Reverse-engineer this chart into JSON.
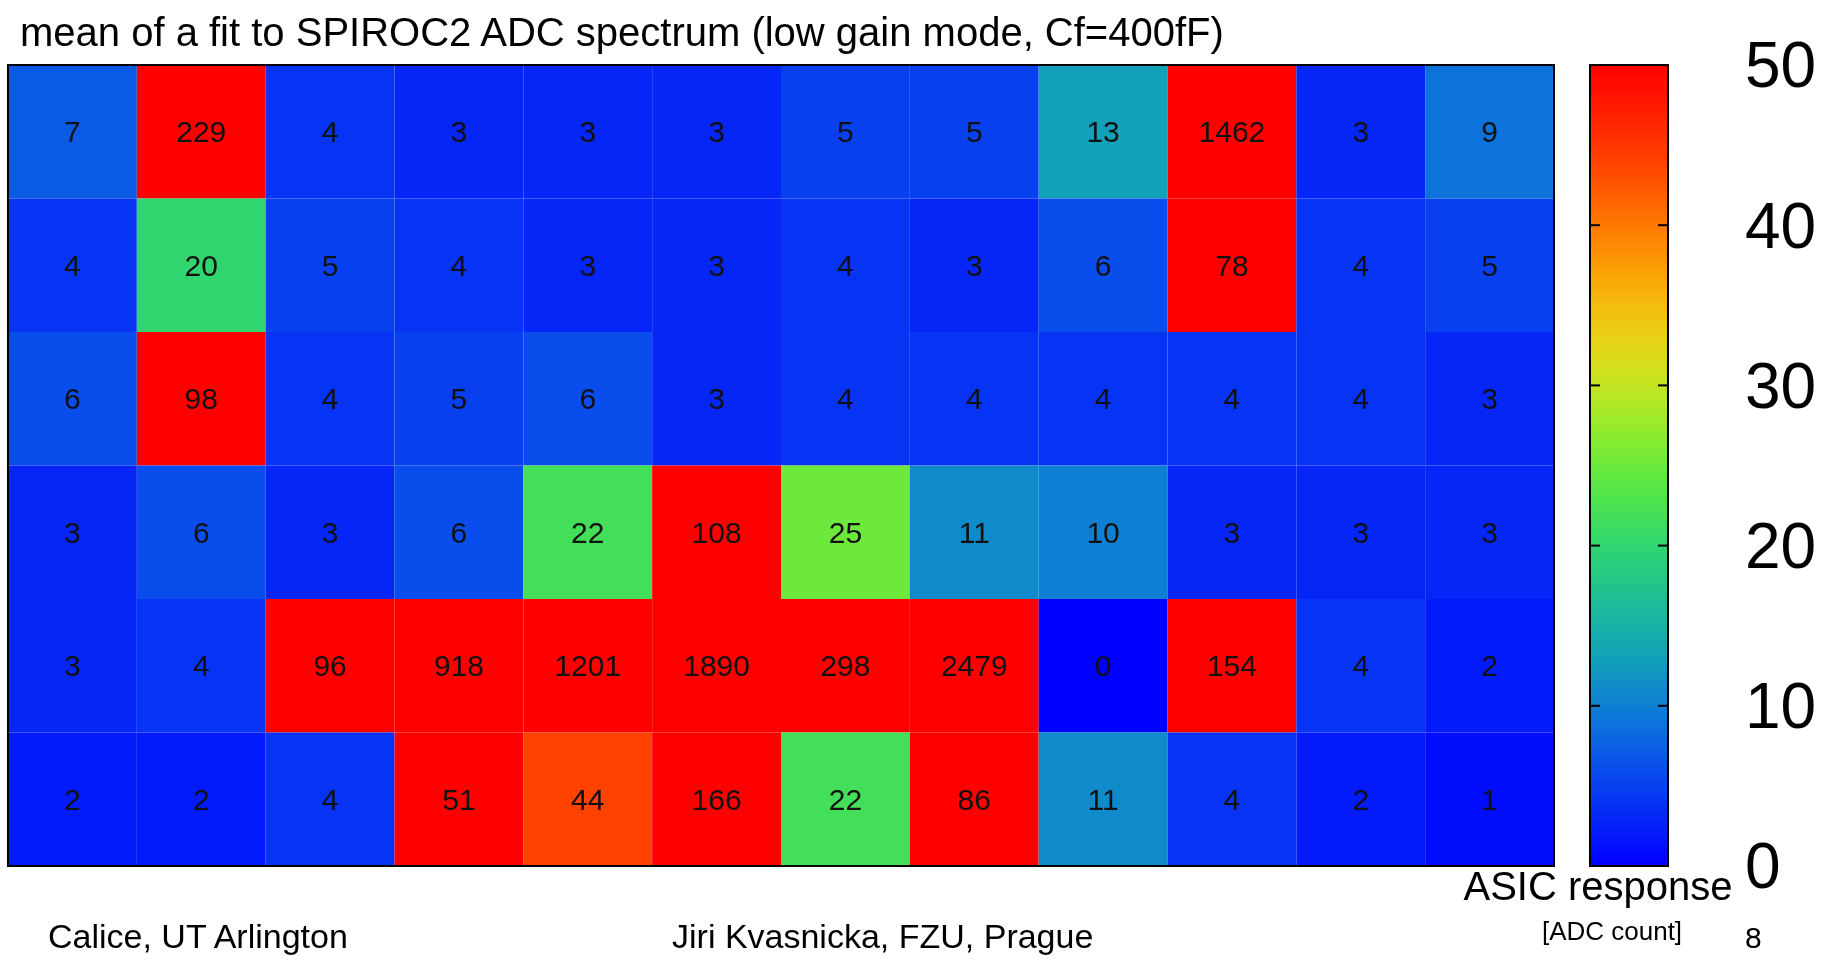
{
  "chart_data": {
    "type": "heatmap",
    "title": "mean of a fit to SPIROC2 ADC spectrum (low gain mode, Cf=400fF)",
    "categories": [
      null,
      null,
      null,
      null,
      null,
      null,
      null,
      null,
      null,
      null,
      null,
      null
    ],
    "y_categories": [
      null,
      null,
      null,
      null,
      null,
      null
    ],
    "cells": [
      [
        7,
        229,
        4,
        3,
        3,
        3,
        5,
        5,
        13,
        1462,
        3,
        9
      ],
      [
        4,
        20,
        5,
        4,
        3,
        3,
        4,
        3,
        6,
        78,
        4,
        5
      ],
      [
        6,
        98,
        4,
        5,
        6,
        3,
        4,
        4,
        4,
        4,
        4,
        3
      ],
      [
        3,
        6,
        3,
        6,
        22,
        108,
        25,
        11,
        10,
        3,
        3,
        3
      ],
      [
        3,
        4,
        96,
        918,
        1201,
        1890,
        298,
        2479,
        0,
        154,
        4,
        2
      ],
      [
        2,
        2,
        4,
        51,
        44,
        166,
        22,
        86,
        11,
        4,
        2,
        1
      ]
    ],
    "data_labels": true,
    "clim": [
      0,
      50
    ],
    "cticks": [
      0,
      10,
      20,
      30,
      40,
      50
    ],
    "clabel": "ASIC response",
    "annotations": [
      "[ADC count]",
      "Calice, UT Arlington",
      "Jiri Kvasnicka, FZU, Prague",
      "8"
    ]
  }
}
